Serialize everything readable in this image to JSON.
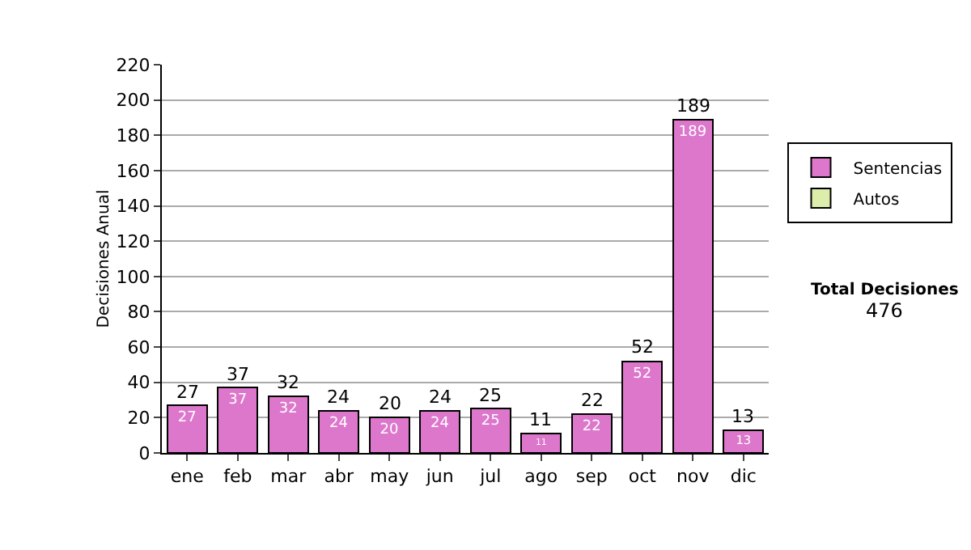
{
  "chart_data": {
    "type": "bar",
    "stacked": true,
    "ylabel": "Decisiones Anual",
    "categories": [
      "ene",
      "feb",
      "mar",
      "abr",
      "may",
      "jun",
      "jul",
      "ago",
      "sep",
      "oct",
      "nov",
      "dic"
    ],
    "series": [
      {
        "name": "Sentencias",
        "color": "#dd77cc",
        "values": [
          27,
          37,
          32,
          24,
          20,
          24,
          25,
          11,
          22,
          52,
          189,
          13
        ],
        "value_labels": [
          "27",
          "37",
          "32",
          "24",
          "20",
          "24",
          "25",
          "11",
          "22",
          "52",
          "189",
          "13"
        ]
      },
      {
        "name": "Autos",
        "color": "#ddeeaa",
        "values": [
          null,
          null,
          null,
          null,
          null,
          null,
          null,
          null,
          null,
          null,
          null,
          null
        ]
      }
    ],
    "totals": [
      "27",
      "37",
      "32",
      "24",
      "20",
      "24",
      "25",
      "11",
      "22",
      "52",
      "189",
      "13"
    ],
    "ylim": [
      0,
      220
    ],
    "yticks": [
      0,
      20,
      40,
      60,
      80,
      100,
      120,
      140,
      160,
      180,
      200,
      220
    ],
    "grid": "y",
    "legend": "right",
    "annotations": [
      "Total Decisiones",
      "476"
    ]
  }
}
